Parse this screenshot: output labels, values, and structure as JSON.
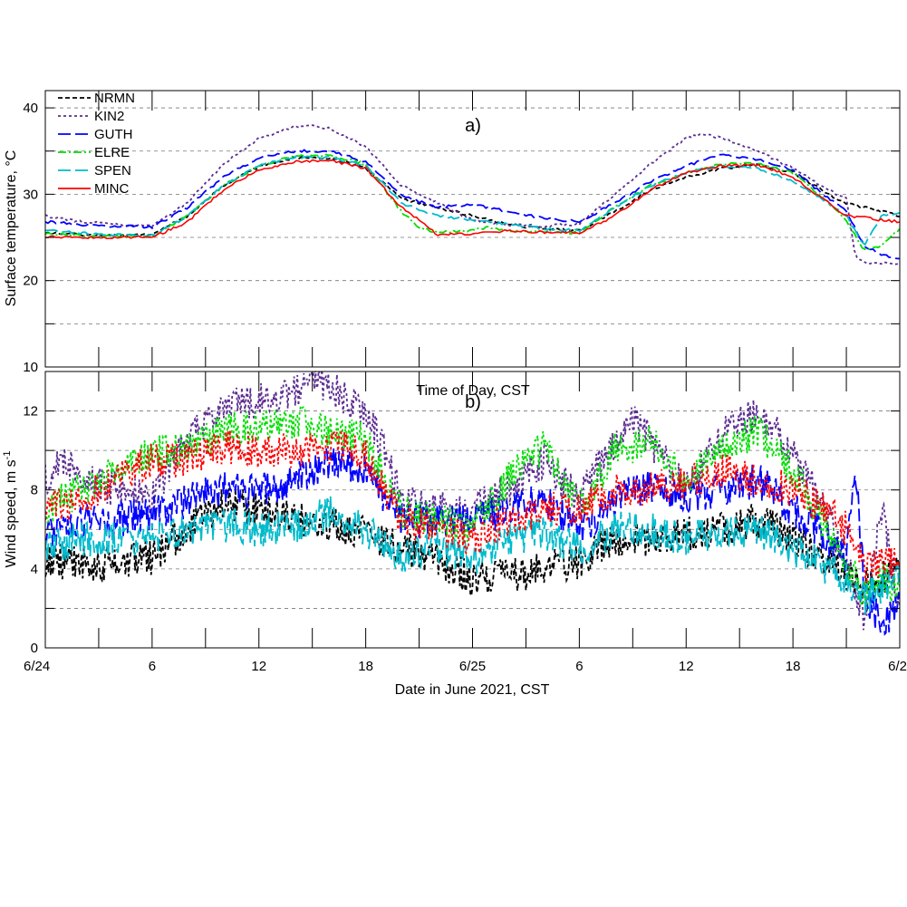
{
  "figure": {
    "top_panel_ylabel": "Surface temperature, °C",
    "bottom_panel_ylabel_main": "Wind speed, m s",
    "bottom_panel_ylabel_sup": "-1",
    "xlabel": "Date in June 2021, CST",
    "inner_caption": "Time of Day, CST",
    "panel_a_label": "a)",
    "panel_b_label": "b)"
  },
  "chart_data": [
    {
      "type": "line",
      "panel": "a)",
      "ylabel": "Surface temperature, °C",
      "ylim": [
        10,
        42
      ],
      "yticks": [
        10,
        20,
        30,
        40
      ],
      "grid": "horizontal dashed at 15, 20, 25, 30, 35, 40",
      "xlabel": "Date in June 2021, CST",
      "xlim_hours": [
        0,
        48
      ],
      "xtick_labels": [
        "6/24",
        "6",
        "12",
        "18",
        "6/25",
        "6",
        "12",
        "18",
        "6/2"
      ],
      "xtick_hours": [
        0,
        6,
        12,
        18,
        24,
        30,
        36,
        42,
        48
      ],
      "legend_position": "top-left",
      "series": [
        {
          "name": "NRMN",
          "color": "#000000",
          "dash": "short-dash",
          "x": [
            0,
            2,
            4,
            6,
            8,
            10,
            12,
            14,
            16,
            18,
            20,
            22,
            24,
            26,
            28,
            30,
            32,
            34,
            36,
            38,
            40,
            42,
            44,
            45,
            46,
            47,
            48
          ],
          "y": [
            25.6,
            25.3,
            25.2,
            25.4,
            27.5,
            31.0,
            33.2,
            34.2,
            34.2,
            33.0,
            29.5,
            28.5,
            27.5,
            26.5,
            26.0,
            25.8,
            28.0,
            30.5,
            32.0,
            33.0,
            33.4,
            32.5,
            30.0,
            29.0,
            28.5,
            28.0,
            27.5
          ]
        },
        {
          "name": "KIN2",
          "color": "#5c2d91",
          "dash": "dotted",
          "x": [
            0,
            2,
            4,
            6,
            8,
            10,
            12,
            14,
            15,
            16,
            18,
            20,
            22,
            24,
            26,
            28,
            30,
            32,
            34,
            36,
            37,
            38,
            40,
            42,
            44,
            45,
            45.5,
            46,
            47,
            48
          ],
          "y": [
            27.5,
            26.8,
            26.5,
            26.3,
            29.0,
            33.5,
            36.5,
            37.8,
            38.0,
            37.6,
            35.5,
            31.0,
            29.0,
            27.0,
            26.5,
            26.3,
            26.6,
            30.0,
            33.5,
            36.5,
            37.0,
            36.5,
            35.0,
            33.0,
            30.5,
            29.5,
            23.0,
            22.0,
            22.0,
            22.0
          ]
        },
        {
          "name": "GUTH",
          "color": "#0000ff",
          "dash": "long-dash",
          "x": [
            0,
            2,
            4,
            6,
            8,
            10,
            12,
            14,
            16,
            18,
            20,
            22,
            24,
            26,
            28,
            30,
            32,
            34,
            36,
            38,
            40,
            42,
            44,
            45,
            45.5,
            46,
            47,
            48
          ],
          "y": [
            26.8,
            26.5,
            26.3,
            26.2,
            28.5,
            32.0,
            34.2,
            35.0,
            35.0,
            33.8,
            29.8,
            28.5,
            28.8,
            28.0,
            27.2,
            26.8,
            29.0,
            31.5,
            33.3,
            34.6,
            34.0,
            32.8,
            29.5,
            28.0,
            26.0,
            24.0,
            23.0,
            22.5
          ]
        },
        {
          "name": "ELRE",
          "color": "#00dd00",
          "dash": "dash-dot",
          "x": [
            0,
            2,
            4,
            6,
            8,
            10,
            12,
            14,
            16,
            18,
            20,
            21,
            22,
            24,
            25,
            26,
            28,
            30,
            32,
            34,
            36,
            38,
            40,
            42,
            44,
            45,
            46,
            47,
            48
          ],
          "y": [
            25.4,
            25.2,
            25.1,
            25.1,
            27.5,
            31.0,
            33.3,
            34.4,
            34.5,
            33.5,
            28.0,
            26.2,
            25.6,
            25.8,
            26.2,
            25.8,
            25.6,
            25.5,
            28.5,
            31.0,
            32.5,
            33.5,
            33.5,
            32.5,
            29.0,
            27.0,
            23.5,
            24.0,
            26.0
          ]
        },
        {
          "name": "SPEN",
          "color": "#00bbcc",
          "dash": "long-dash",
          "x": [
            0,
            2,
            4,
            6,
            8,
            10,
            12,
            14,
            16,
            18,
            20,
            22,
            24,
            26,
            28,
            30,
            32,
            34,
            36,
            38,
            40,
            42,
            44,
            45,
            46,
            47,
            48
          ],
          "y": [
            25.8,
            25.5,
            25.3,
            25.2,
            27.5,
            31.0,
            33.3,
            34.3,
            34.3,
            33.3,
            29.0,
            27.5,
            27.0,
            26.5,
            26.0,
            25.8,
            28.5,
            31.0,
            32.5,
            33.3,
            33.0,
            31.5,
            29.0,
            27.5,
            24.0,
            27.5,
            27.8
          ]
        },
        {
          "name": "MINC",
          "color": "#ff0000",
          "dash": "solid",
          "x": [
            0,
            2,
            4,
            6,
            8,
            10,
            12,
            14,
            16,
            18,
            20,
            21,
            22,
            24,
            26,
            28,
            30,
            32,
            34,
            36,
            38,
            40,
            42,
            44,
            45,
            46,
            47,
            48
          ],
          "y": [
            25.1,
            25.0,
            25.0,
            25.0,
            26.8,
            30.5,
            32.8,
            33.8,
            33.9,
            33.0,
            28.5,
            27.0,
            25.3,
            25.4,
            25.8,
            25.6,
            25.5,
            27.5,
            30.5,
            32.5,
            33.3,
            33.4,
            32.0,
            29.0,
            27.5,
            27.3,
            27.0,
            26.8
          ]
        }
      ]
    },
    {
      "type": "line",
      "panel": "b)",
      "ylabel": "Wind speed, m s-1",
      "ylim": [
        0,
        14
      ],
      "yticks": [
        0,
        4,
        8,
        12
      ],
      "grid": "horizontal dashed at 2, 4, 6, 8, 10, 12",
      "xlabel": "Date in June 2021, CST",
      "xlim_hours": [
        0,
        48
      ],
      "xtick_labels": [
        "6/24",
        "6",
        "12",
        "18",
        "6/25",
        "6",
        "12",
        "18",
        "6/2"
      ],
      "xtick_hours": [
        0,
        6,
        12,
        18,
        24,
        30,
        36,
        42,
        48
      ],
      "series": [
        {
          "name": "NRMN",
          "color": "#000000",
          "dash": "short-dash",
          "x": [
            0,
            2,
            4,
            6,
            8,
            10,
            12,
            14,
            16,
            18,
            20,
            22,
            24,
            26,
            28,
            30,
            32,
            34,
            36,
            38,
            40,
            42,
            44,
            45,
            46,
            47,
            48
          ],
          "y": [
            4.5,
            4.2,
            4.3,
            4.6,
            6.0,
            7.4,
            7.0,
            6.5,
            6.2,
            5.8,
            5.0,
            4.5,
            3.5,
            3.6,
            4.0,
            4.4,
            5.5,
            5.5,
            5.8,
            6.0,
            6.5,
            5.5,
            4.2,
            3.8,
            3.2,
            3.5,
            4.5
          ]
        },
        {
          "name": "KIN2",
          "color": "#5c2d91",
          "dash": "dotted",
          "x": [
            0,
            1,
            2,
            4,
            6,
            8,
            10,
            12,
            14,
            15,
            16,
            18,
            19,
            20,
            22,
            24,
            26,
            28,
            30,
            32,
            33,
            34,
            36,
            38,
            40,
            42,
            44,
            45,
            46,
            47,
            48
          ],
          "y": [
            8.5,
            9.6,
            8.5,
            8.0,
            7.6,
            10.5,
            12.3,
            12.5,
            13.0,
            13.8,
            13.2,
            12.0,
            10.0,
            7.5,
            7.0,
            7.0,
            8.0,
            9.5,
            7.5,
            10.5,
            11.6,
            10.5,
            8.0,
            10.8,
            12.0,
            10.0,
            6.5,
            4.5,
            1.5,
            7.0,
            2.0
          ]
        },
        {
          "name": "GUTH",
          "color": "#0000ff",
          "dash": "long-dash",
          "x": [
            0,
            2,
            4,
            6,
            8,
            10,
            12,
            14,
            16,
            18,
            20,
            22,
            24,
            26,
            28,
            30,
            32,
            34,
            36,
            38,
            40,
            42,
            44,
            45,
            45.5,
            46,
            47,
            48
          ],
          "y": [
            5.5,
            6.5,
            6.5,
            6.8,
            7.5,
            8.0,
            8.0,
            8.5,
            9.5,
            9.0,
            6.5,
            6.5,
            6.5,
            7.0,
            7.5,
            6.0,
            7.5,
            8.2,
            7.5,
            8.0,
            8.5,
            7.0,
            5.5,
            4.5,
            9.5,
            3.0,
            1.0,
            2.0
          ]
        },
        {
          "name": "ELRE",
          "color": "#00dd00",
          "dash": "dotted",
          "x": [
            0,
            2,
            4,
            6,
            8,
            10,
            12,
            14,
            16,
            18,
            20,
            22,
            24,
            26,
            28,
            30,
            32,
            34,
            36,
            38,
            40,
            42,
            44,
            45,
            46,
            47,
            48
          ],
          "y": [
            7.0,
            8.0,
            9.0,
            9.8,
            10.2,
            11.0,
            11.2,
            11.5,
            11.0,
            10.5,
            7.0,
            6.5,
            6.0,
            8.5,
            10.2,
            7.0,
            10.0,
            10.5,
            8.5,
            10.0,
            11.0,
            9.0,
            6.0,
            4.5,
            2.5,
            3.5,
            3.0
          ]
        },
        {
          "name": "SPEN",
          "color": "#00bbcc",
          "dash": "long-dash",
          "x": [
            0,
            2,
            4,
            6,
            8,
            10,
            12,
            14,
            16,
            18,
            20,
            22,
            24,
            26,
            28,
            30,
            32,
            34,
            36,
            38,
            40,
            42,
            44,
            45,
            46,
            47,
            48
          ],
          "y": [
            5.0,
            5.5,
            5.5,
            5.5,
            6.0,
            6.2,
            6.0,
            6.2,
            6.8,
            6.0,
            4.5,
            5.0,
            4.5,
            5.5,
            5.8,
            5.0,
            6.0,
            6.0,
            5.5,
            5.8,
            6.0,
            5.0,
            4.0,
            3.5,
            2.5,
            3.0,
            4.0
          ]
        },
        {
          "name": "MINC",
          "color": "#ff0000",
          "dash": "dotted",
          "x": [
            0,
            2,
            4,
            6,
            8,
            10,
            12,
            14,
            16,
            18,
            20,
            22,
            24,
            26,
            28,
            30,
            32,
            34,
            36,
            38,
            40,
            42,
            44,
            45,
            46,
            47,
            48
          ],
          "y": [
            7.0,
            7.5,
            8.5,
            9.5,
            9.5,
            10.2,
            10.0,
            10.0,
            10.2,
            9.8,
            6.5,
            6.0,
            5.5,
            6.5,
            7.0,
            7.0,
            8.0,
            8.0,
            8.5,
            9.0,
            8.5,
            8.0,
            7.0,
            6.0,
            4.0,
            4.5,
            4.0
          ]
        }
      ]
    }
  ]
}
